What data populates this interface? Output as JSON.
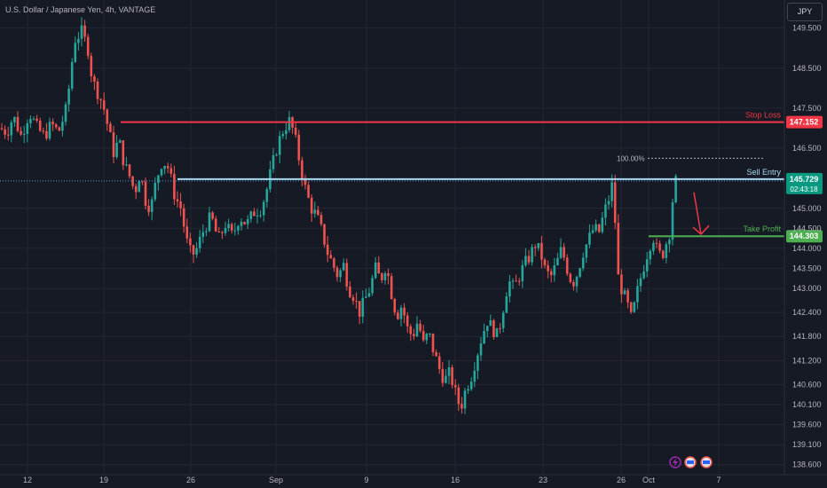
{
  "header": {
    "title": "U.S. Dollar / Japanese Yen, 4h, VANTAGE"
  },
  "currency_button": "JPY",
  "colors": {
    "up": "#26a69a",
    "down": "#ef5350",
    "stop": "#f23645",
    "entry": "#a8d8f0",
    "target": "#4caf50",
    "bg": "#161a25",
    "grid": "#242733"
  },
  "chart_data": {
    "type": "candlestick",
    "title": "U.S. Dollar / Japanese Yen, 4h, VANTAGE",
    "ylim": [
      138.35,
      150.2
    ],
    "y_ticks": [
      149.5,
      148.5,
      147.5,
      146.5,
      145.0,
      144.5,
      144.0,
      143.5,
      143.0,
      142.4,
      141.8,
      141.2,
      140.6,
      140.1,
      139.6,
      139.1,
      138.6
    ],
    "y_tick_labels": [
      "149.500",
      "148.500",
      "147.500",
      "146.500",
      "145.000",
      "144.500",
      "144.000",
      "143.500",
      "143.000",
      "142.400",
      "141.800",
      "141.200",
      "140.600",
      "140.100",
      "139.600",
      "139.100",
      "138.600"
    ],
    "x_ticks": [
      {
        "label": "12",
        "x": 31
      },
      {
        "label": "19",
        "x": 117
      },
      {
        "label": "26",
        "x": 215
      },
      {
        "label": "Sep",
        "x": 311
      },
      {
        "label": "9",
        "x": 413
      },
      {
        "label": "16",
        "x": 513
      },
      {
        "label": "23",
        "x": 612
      },
      {
        "label": "26",
        "x": 700
      },
      {
        "label": "Oct",
        "x": 731
      },
      {
        "label": "7",
        "x": 810
      }
    ],
    "price_path": [
      [
        0,
        147.0
      ],
      [
        8,
        146.9
      ],
      [
        15,
        147.3
      ],
      [
        24,
        146.8
      ],
      [
        33,
        147.4
      ],
      [
        42,
        147.0
      ],
      [
        50,
        146.8
      ],
      [
        58,
        147.1
      ],
      [
        66,
        146.9
      ],
      [
        75,
        147.5
      ],
      [
        84,
        149.2
      ],
      [
        92,
        149.4
      ],
      [
        99,
        149.0
      ],
      [
        104,
        148.2
      ],
      [
        110,
        147.9
      ],
      [
        116,
        147.6
      ],
      [
        122,
        147.0
      ],
      [
        128,
        146.4
      ],
      [
        134,
        146.7
      ],
      [
        140,
        146.1
      ],
      [
        146,
        145.8
      ],
      [
        152,
        145.4
      ],
      [
        158,
        145.9
      ],
      [
        164,
        145.2
      ],
      [
        170,
        145.0
      ],
      [
        176,
        145.7
      ],
      [
        183,
        146.2
      ],
      [
        190,
        146.0
      ],
      [
        197,
        145.3
      ],
      [
        204,
        145.0
      ],
      [
        210,
        144.2
      ],
      [
        216,
        143.8
      ],
      [
        222,
        144.0
      ],
      [
        230,
        144.5
      ],
      [
        238,
        144.8
      ],
      [
        246,
        144.2
      ],
      [
        254,
        144.6
      ],
      [
        262,
        144.3
      ],
      [
        270,
        144.8
      ],
      [
        278,
        144.6
      ],
      [
        286,
        144.9
      ],
      [
        294,
        145.0
      ],
      [
        300,
        145.4
      ],
      [
        306,
        146.0
      ],
      [
        313,
        146.6
      ],
      [
        320,
        147.0
      ],
      [
        327,
        147.2
      ],
      [
        333,
        146.7
      ],
      [
        339,
        146.0
      ],
      [
        345,
        145.4
      ],
      [
        351,
        145.0
      ],
      [
        357,
        144.8
      ],
      [
        363,
        144.4
      ],
      [
        369,
        143.9
      ],
      [
        375,
        143.6
      ],
      [
        381,
        143.3
      ],
      [
        387,
        143.6
      ],
      [
        393,
        143.0
      ],
      [
        399,
        142.8
      ],
      [
        405,
        142.4
      ],
      [
        411,
        142.7
      ],
      [
        417,
        143.0
      ],
      [
        423,
        143.5
      ],
      [
        429,
        143.2
      ],
      [
        435,
        143.6
      ],
      [
        441,
        142.9
      ],
      [
        447,
        142.3
      ],
      [
        453,
        142.6
      ],
      [
        459,
        142.0
      ],
      [
        465,
        141.8
      ],
      [
        471,
        142.2
      ],
      [
        477,
        141.6
      ],
      [
        483,
        141.9
      ],
      [
        489,
        141.4
      ],
      [
        495,
        141.0
      ],
      [
        501,
        140.7
      ],
      [
        507,
        140.9
      ],
      [
        513,
        140.4
      ],
      [
        519,
        140.0
      ],
      [
        525,
        140.5
      ],
      [
        531,
        140.8
      ],
      [
        537,
        141.3
      ],
      [
        543,
        141.8
      ],
      [
        549,
        142.2
      ],
      [
        555,
        142.0
      ],
      [
        561,
        141.8
      ],
      [
        567,
        142.5
      ],
      [
        573,
        143.2
      ],
      [
        579,
        143.0
      ],
      [
        585,
        143.3
      ],
      [
        591,
        143.6
      ],
      [
        597,
        143.8
      ],
      [
        603,
        144.1
      ],
      [
        609,
        143.9
      ],
      [
        615,
        143.4
      ],
      [
        621,
        143.3
      ],
      [
        627,
        143.6
      ],
      [
        633,
        144.0
      ],
      [
        639,
        143.5
      ],
      [
        645,
        143.1
      ],
      [
        651,
        143.4
      ],
      [
        657,
        143.9
      ],
      [
        663,
        144.2
      ],
      [
        669,
        144.5
      ],
      [
        675,
        144.4
      ],
      [
        681,
        144.9
      ],
      [
        687,
        145.3
      ],
      [
        691,
        145.7
      ],
      [
        694,
        144.3
      ],
      [
        697,
        143.2
      ],
      [
        702,
        142.9
      ],
      [
        707,
        142.6
      ],
      [
        712,
        142.2
      ],
      [
        716,
        142.7
      ],
      [
        720,
        143.1
      ],
      [
        726,
        143.6
      ],
      [
        731,
        144.0
      ],
      [
        736,
        144.3
      ],
      [
        741,
        143.9
      ],
      [
        746,
        143.8
      ],
      [
        750,
        144.1
      ],
      [
        754,
        144.3
      ],
      [
        758,
        145.2
      ],
      [
        762,
        145.729
      ]
    ],
    "levels": [
      {
        "name": "stop-loss",
        "label": "Stop Loss",
        "price": 147.152,
        "price_label": "147.152",
        "x_start": 136
      },
      {
        "name": "sell-entry",
        "label": "Sell Entry",
        "price": 145.729,
        "price_label": "145.729",
        "x_start": 200
      },
      {
        "name": "take-profit",
        "label": "Take Profit",
        "price": 144.303,
        "price_label": "144.303",
        "x_start": 731
      }
    ],
    "annotations": {
      "fib_label": "100.00%",
      "countdown": "02:43:18"
    }
  }
}
